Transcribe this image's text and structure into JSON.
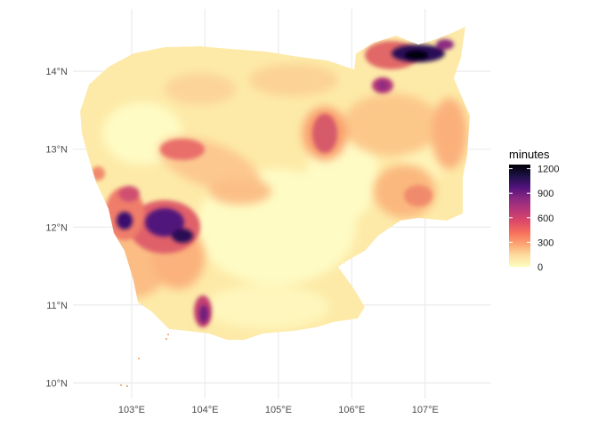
{
  "chart_data": {
    "type": "heatmap",
    "title": "",
    "xlabel": "",
    "ylabel": "",
    "x_ticks": [
      "103°E",
      "104°E",
      "105°E",
      "106°E",
      "107°E"
    ],
    "x_tick_values": [
      103,
      104,
      105,
      106,
      107
    ],
    "y_ticks": [
      "10°N",
      "11°N",
      "12°N",
      "13°N",
      "14°N"
    ],
    "y_tick_values": [
      10,
      11,
      12,
      13,
      14
    ],
    "xlim": [
      102.2,
      107.9
    ],
    "ylim": [
      9.8,
      14.8
    ],
    "grid": true,
    "legend": {
      "title": "minutes",
      "placement": "right",
      "labels": [
        "1200",
        "900",
        "600",
        "300",
        "0"
      ],
      "values": [
        1200,
        900,
        600,
        300,
        0
      ],
      "range": [
        0,
        1250
      ],
      "colors": [
        "#fcfdbf",
        "#fddea0",
        "#fca572",
        "#f7705c",
        "#de4968",
        "#b73779",
        "#8c2981",
        "#51127c",
        "#1d1147",
        "#000004"
      ]
    },
    "hotspots": [
      {
        "lon": 106.8,
        "lat": 14.28,
        "minutes": 1250
      },
      {
        "lon": 103.6,
        "lat": 12.0,
        "minutes": 1000
      },
      {
        "lon": 102.95,
        "lat": 12.1,
        "minutes": 900
      },
      {
        "lon": 104.0,
        "lat": 10.85,
        "minutes": 800
      },
      {
        "lon": 106.4,
        "lat": 13.85,
        "minutes": 650
      },
      {
        "lon": 105.6,
        "lat": 13.3,
        "minutes": 550
      },
      {
        "lon": 103.2,
        "lat": 12.4,
        "minutes": 450
      }
    ]
  }
}
